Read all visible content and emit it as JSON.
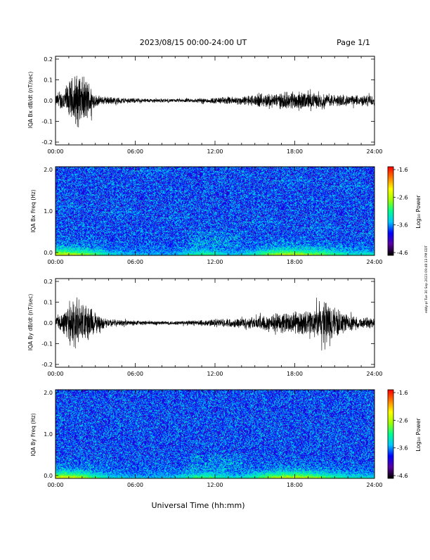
{
  "header": {
    "title": "2023/08/15  00:00-24:00 UT",
    "page": "Page 1/1"
  },
  "x_axis": {
    "label": "Universal Time (hh:mm)",
    "tick_labels": [
      "00:00",
      "06:00",
      "12:00",
      "18:00",
      "24:00"
    ]
  },
  "side_note": "eddy-pl Tue 30 Sep 2023 09:48:13 PM EDT",
  "colors": {
    "trace": "#000000",
    "colormap": [
      "#000000",
      "#5a00a0",
      "#0000ff",
      "#00c8ff",
      "#00ff90",
      "#a0ff00",
      "#ffff00",
      "#ff8000",
      "#ff0000"
    ]
  },
  "chart_data": [
    {
      "type": "line",
      "id": "bx-dbdt",
      "ylabel": "IQA Bx dB/dt (nT/sec)",
      "xlim": [
        0,
        24
      ],
      "ylim": [
        -0.2,
        0.2
      ],
      "yticks": [
        "0.2",
        "0.1",
        "0.0",
        "-0.1",
        "-0.2"
      ],
      "xticks": [
        "00:00",
        "06:00",
        "12:00",
        "18:00",
        "24:00"
      ],
      "grid": false,
      "envelope": {
        "hours": [
          0,
          0.3,
          0.6,
          1.0,
          1.5,
          2.0,
          2.5,
          3.0,
          3.5,
          4.0,
          5.0,
          6.0,
          7.0,
          8.0,
          9.0,
          10.0,
          11.0,
          12.0,
          13.0,
          14.0,
          15.0,
          16.0,
          17.0,
          18.0,
          19.0,
          20.0,
          21.0,
          22.0,
          23.0,
          24.0
        ],
        "amplitude": [
          0.03,
          0.04,
          0.06,
          0.09,
          0.14,
          0.12,
          0.1,
          0.03,
          0.02,
          0.02,
          0.015,
          0.012,
          0.01,
          0.01,
          0.008,
          0.01,
          0.012,
          0.015,
          0.02,
          0.02,
          0.03,
          0.035,
          0.04,
          0.045,
          0.04,
          0.035,
          0.03,
          0.025,
          0.025,
          0.03
        ]
      }
    },
    {
      "type": "heatmap",
      "id": "bx-freq",
      "ylabel": "IQA Bx Freq (Hz)",
      "xlim": [
        0,
        24
      ],
      "ylim": [
        0,
        2.0
      ],
      "yticks": [
        "2.0",
        "1.0",
        "0.0"
      ],
      "xticks": [
        "00:00",
        "06:00",
        "12:00",
        "18:00",
        "24:00"
      ],
      "colorbar": {
        "label": "Log₁₀ Power",
        "range": [
          -4.6,
          -1.6
        ],
        "tick_labels": [
          "-1.6",
          "-2.6",
          "-3.6",
          "-4.6"
        ]
      },
      "low_freq_power": {
        "hours": [
          0,
          1,
          2,
          3,
          4,
          6,
          9,
          10,
          11,
          12,
          13,
          14,
          15,
          16,
          17,
          18,
          19,
          20,
          21,
          22,
          24
        ],
        "log_power": [
          -2.2,
          -2.2,
          -2.5,
          -2.8,
          -3.2,
          -3.4,
          -3.4,
          -3.1,
          -2.9,
          -3.0,
          -3.3,
          -3.3,
          -3.0,
          -2.6,
          -2.3,
          -2.3,
          -2.5,
          -2.6,
          -2.9,
          -3.1,
          -3.2
        ]
      }
    },
    {
      "type": "line",
      "id": "by-dbdt",
      "ylabel": "IQA By dB/dt (nT/sec)",
      "xlim": [
        0,
        24
      ],
      "ylim": [
        -0.2,
        0.2
      ],
      "yticks": [
        "0.2",
        "0.1",
        "0.0",
        "-0.1",
        "-0.2"
      ],
      "xticks": [
        "00:00",
        "06:00",
        "12:00",
        "18:00",
        "24:00"
      ],
      "grid": false,
      "envelope": {
        "hours": [
          0,
          0.5,
          1.0,
          1.5,
          2.0,
          2.5,
          3.0,
          3.5,
          4.0,
          5.0,
          6.0,
          7.0,
          8.0,
          9.0,
          10.0,
          11.0,
          12.0,
          13.0,
          14.0,
          15.0,
          16.0,
          17.0,
          18.0,
          19.0,
          20.0,
          20.5,
          21.0,
          22.0,
          23.0,
          24.0
        ],
        "amplitude": [
          0.04,
          0.05,
          0.08,
          0.12,
          0.11,
          0.09,
          0.05,
          0.03,
          0.02,
          0.015,
          0.012,
          0.01,
          0.01,
          0.01,
          0.012,
          0.015,
          0.02,
          0.02,
          0.025,
          0.03,
          0.045,
          0.05,
          0.055,
          0.06,
          0.09,
          0.12,
          0.08,
          0.04,
          0.025,
          0.03
        ]
      }
    },
    {
      "type": "heatmap",
      "id": "by-freq",
      "ylabel": "IQA By Freq (Hz)",
      "xlim": [
        0,
        24
      ],
      "ylim": [
        0,
        2.0
      ],
      "yticks": [
        "2.0",
        "1.0",
        "0.0"
      ],
      "xticks": [
        "00:00",
        "06:00",
        "12:00",
        "18:00",
        "24:00"
      ],
      "colorbar": {
        "label": "Log₁₀ Power",
        "range": [
          -4.6,
          -1.6
        ],
        "tick_labels": [
          "-1.6",
          "-2.6",
          "-3.6",
          "-4.6"
        ]
      },
      "low_freq_power": {
        "hours": [
          0,
          1,
          2,
          3,
          4,
          6,
          9,
          10,
          11,
          12,
          13,
          14,
          15,
          16,
          17,
          18,
          19,
          20,
          21,
          22,
          24
        ],
        "log_power": [
          -2.1,
          -2.1,
          -2.4,
          -2.8,
          -3.2,
          -3.4,
          -3.3,
          -3.0,
          -2.8,
          -2.9,
          -3.1,
          -3.2,
          -2.9,
          -2.5,
          -2.3,
          -2.2,
          -2.4,
          -2.6,
          -2.9,
          -3.1,
          -3.2
        ]
      }
    }
  ]
}
